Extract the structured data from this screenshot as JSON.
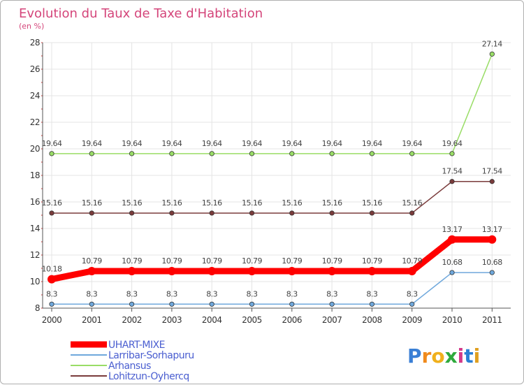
{
  "chart_data": {
    "type": "line",
    "title": "Evolution du Taux de Taxe d'Habitation",
    "subtitle": "(en %)",
    "xlabel": "",
    "ylabel": "",
    "categories": [
      "2000",
      "2001",
      "2002",
      "2003",
      "2004",
      "2005",
      "2006",
      "2007",
      "2008",
      "2009",
      "2010",
      "2011"
    ],
    "ylim": [
      8,
      28
    ],
    "yticks": [
      8,
      10,
      12,
      14,
      16,
      18,
      20,
      22,
      24,
      26,
      28
    ],
    "series": [
      {
        "name": "UHART-MIXE",
        "color": "#ff0000",
        "values": [
          10.18,
          10.79,
          10.79,
          10.79,
          10.79,
          10.79,
          10.79,
          10.79,
          10.79,
          10.79,
          13.17,
          13.17
        ],
        "labels": [
          "10.18",
          "10.79",
          "10.79",
          "10.79",
          "10.79",
          "10.79",
          "10.79",
          "10.79",
          "10.79",
          "10.79",
          "13.17",
          "13.17"
        ]
      },
      {
        "name": "Larribar-Sorhapuru",
        "color": "#6fa8dc",
        "values": [
          8.3,
          8.3,
          8.3,
          8.3,
          8.3,
          8.3,
          8.3,
          8.3,
          8.3,
          8.3,
          10.68,
          10.68
        ],
        "labels": [
          "8.3",
          "8.3",
          "8.3",
          "8.3",
          "8.3",
          "8.3",
          "8.3",
          "8.3",
          "8.3",
          "8.3",
          "10.68",
          "10.68"
        ]
      },
      {
        "name": "Arhansus",
        "color": "#99dd66",
        "values": [
          19.64,
          19.64,
          19.64,
          19.64,
          19.64,
          19.64,
          19.64,
          19.64,
          19.64,
          19.64,
          19.64,
          27.14
        ],
        "labels": [
          "19.64",
          "19.64",
          "19.64",
          "19.64",
          "19.64",
          "19.64",
          "19.64",
          "19.64",
          "19.64",
          "19.64",
          "19.64",
          "27.14"
        ]
      },
      {
        "name": "Lohitzun-Oyhercq",
        "color": "#7a3b3b",
        "values": [
          15.16,
          15.16,
          15.16,
          15.16,
          15.16,
          15.16,
          15.16,
          15.16,
          15.16,
          15.16,
          17.54,
          17.54
        ],
        "labels": [
          "15.16",
          "15.16",
          "15.16",
          "15.16",
          "15.16",
          "15.16",
          "15.16",
          "15.16",
          "15.16",
          "15.16",
          "17.54",
          "17.54"
        ]
      }
    ],
    "legend_position": "bottom-left"
  },
  "logo": {
    "text": "Proxiti"
  }
}
